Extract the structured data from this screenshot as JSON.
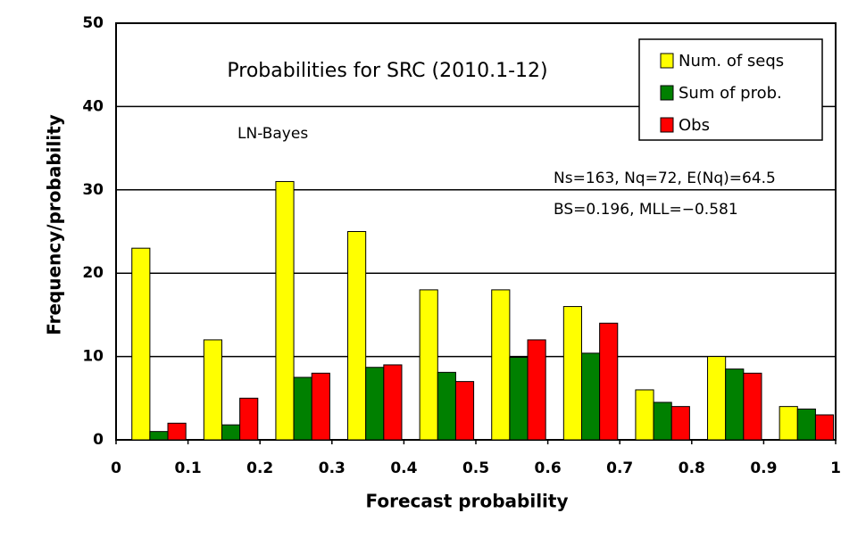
{
  "chart_data": {
    "type": "histogram",
    "title": "Probabilities for SRC (2010.1-12)",
    "x_label": "Forecast probability",
    "y_label": "Frequency/probability",
    "annotations": [
      "LN-Bayes",
      "Ns=163, Nq=72, E(Nq)=64.5",
      "BS=0.196, MLL=−0.581"
    ],
    "bins": [
      0,
      0.1,
      0.2,
      0.3,
      0.4,
      0.5,
      0.6,
      0.7,
      0.8,
      0.9,
      1
    ],
    "series": [
      {
        "name": "Num. of seqs",
        "color": "#ffff00",
        "values": [
          23,
          12,
          31,
          25,
          18,
          18,
          16,
          6,
          10,
          4
        ]
      },
      {
        "name": "Sum of prob.",
        "color": "#008000",
        "values": [
          1,
          1.8,
          7.5,
          8.7,
          8.1,
          9.9,
          10.4,
          4.5,
          8.5,
          3.7
        ]
      },
      {
        "name": "Obs",
        "color": "#ff0000",
        "values": [
          2,
          5,
          8,
          9,
          7,
          12,
          14,
          4,
          8,
          3
        ]
      }
    ],
    "xlim": [
      0,
      1
    ],
    "xticks": [
      0,
      0.1,
      0.2,
      0.3,
      0.4,
      0.5,
      0.6,
      0.7,
      0.8,
      0.9,
      1
    ],
    "ylim": [
      0,
      50
    ],
    "yticks": [
      0,
      10,
      20,
      30,
      40,
      50
    ],
    "grid": true,
    "legend": "upper right"
  }
}
